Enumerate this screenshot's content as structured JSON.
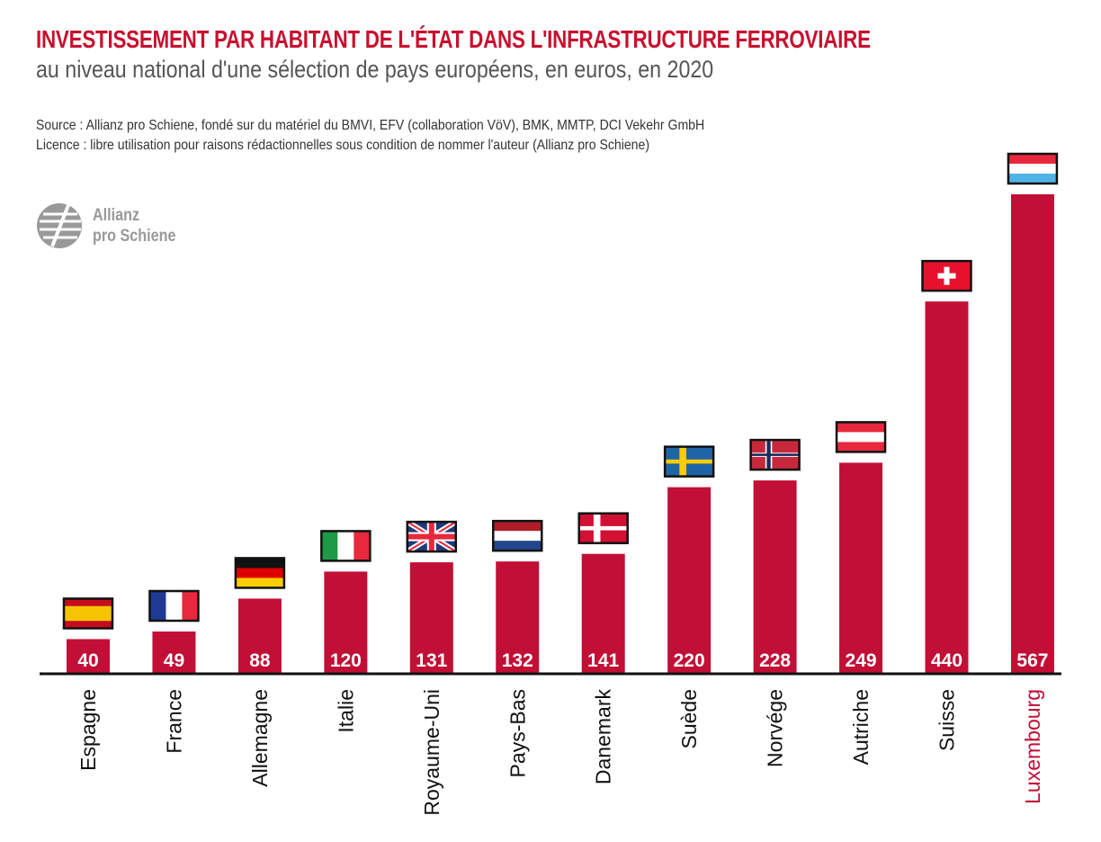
{
  "title": "INVESTISSEMENT PAR HABITANT DE L'ÉTAT DANS L'INFRASTRUCTURE FERROVIAIRE",
  "subtitle": "au niveau national d'une sélection de pays européens, en euros, en 2020",
  "source": "Source : Allianz pro Schiene, fondé sur du matériel du BMVI, EFV (collaboration VöV), BMK, MMTP, DCI Vekehr GmbH",
  "licence": "Licence : libre utilisation pour raisons rédactionnelles sous condition de nommer l'auteur (Allianz pro Schiene)",
  "logo": {
    "line1": "Allianz",
    "line2": "pro Schiene"
  },
  "colors": {
    "bar": "#c20f36",
    "title": "#c8102e",
    "highlight_label": "#c20f36",
    "label": "#111111"
  },
  "chart_data": {
    "type": "bar",
    "title": "INVESTISSEMENT PAR HABITANT DE L'ÉTAT DANS L'INFRASTRUCTURE FERROVIAIRE",
    "subtitle": "au niveau national d'une sélection de pays européens, en euros, en 2020",
    "categories": [
      "Espagne",
      "France",
      "Allemagne",
      "Italie",
      "Royaume-Uni",
      "Pays-Bas",
      "Danemark",
      "Suède",
      "Norvége",
      "Autriche",
      "Suisse",
      "Luxembourg"
    ],
    "values": [
      40,
      49,
      88,
      120,
      131,
      132,
      141,
      220,
      228,
      249,
      440,
      567
    ],
    "flags": [
      "flag-es",
      "flag-fr",
      "flag-de",
      "flag-it",
      "flag-uk",
      "flag-nl",
      "flag-dk",
      "flag-se",
      "flag-no",
      "flag-at",
      "flag-ch",
      "flag-lu"
    ],
    "highlighted": "Luxembourg",
    "data_labels": true,
    "grid": false,
    "ylim": [
      0,
      567
    ]
  }
}
